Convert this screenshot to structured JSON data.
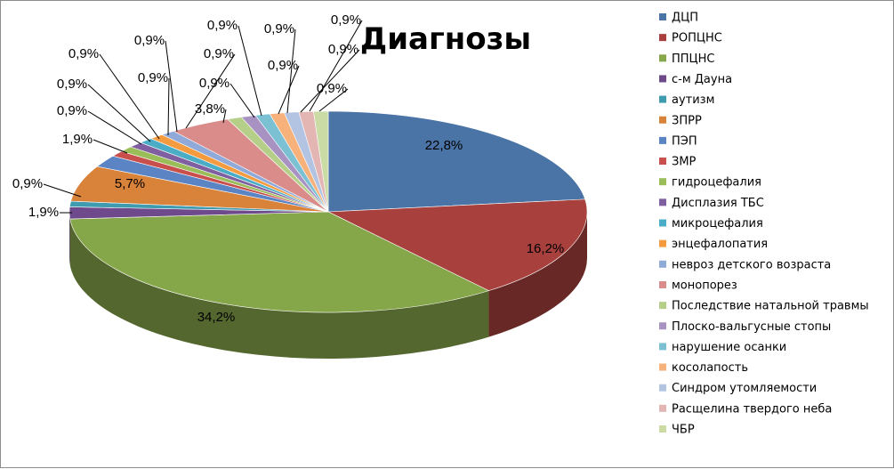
{
  "chart_data": {
    "type": "pie",
    "title": "Диагнозы",
    "legend_position": "right",
    "categories": [
      "ДЦП",
      "РОПЦНС",
      "ППЦНС",
      "с-м Дауна",
      "аутизм",
      "ЗПРР",
      "ПЭП",
      "ЗМР",
      "гидроцефалия",
      "Дисплазия ТБС",
      "микроцефалия",
      "энцефалопатия",
      "невроз детского возраста",
      "монопорез",
      "Последствие натальной травмы",
      "Плоско-вальгусные стопы",
      "нарушение осанки",
      "косолапость",
      "Синдром утомляемости",
      "Расщелина твердого неба",
      "ЧБР"
    ],
    "values": [
      22.8,
      16.2,
      34.2,
      1.9,
      0.9,
      5.7,
      1.9,
      0.9,
      0.9,
      0.9,
      0.9,
      0.9,
      0.9,
      3.8,
      0.9,
      0.9,
      0.9,
      0.9,
      0.9,
      0.9,
      0.9
    ],
    "labels": [
      "22,8%",
      "16,2%",
      "34,2%",
      "1,9%",
      "0,9%",
      "5,7%",
      "1,9%",
      "0,9%",
      "0,9%",
      "0,9%",
      "0,9%",
      "0,9%",
      "0,9%",
      "3,8%",
      "0,9%",
      "0,9%",
      "0,9%",
      "0,9%",
      "0,9%",
      "0,9%",
      "0,9%"
    ],
    "colors": [
      "#4a73a6",
      "#a8403d",
      "#86a64a",
      "#6e4a8c",
      "#3e9bb0",
      "#d9823a",
      "#5b84c4",
      "#c94f4d",
      "#9bbd59",
      "#7f5fa0",
      "#4bacc6",
      "#f59b3f",
      "#8fa9d8",
      "#d98c8a",
      "#b5cf88",
      "#a892c2",
      "#7cc0d4",
      "#f7b27c",
      "#b3c4e2",
      "#e3b6b4",
      "#cadba6"
    ]
  }
}
